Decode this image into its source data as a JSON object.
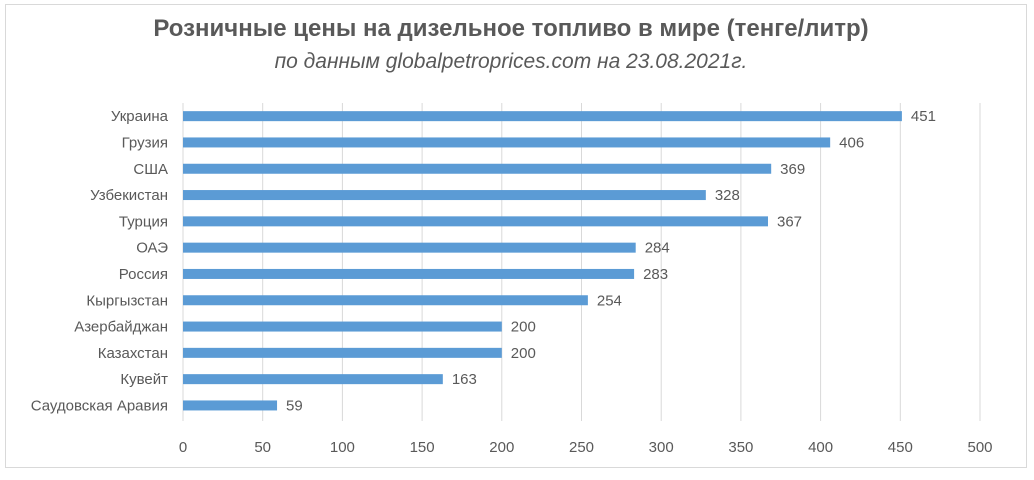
{
  "chart_data": {
    "type": "bar",
    "orientation": "horizontal",
    "title": "Розничные цены на дизельное топливо в мире (тенге/литр)",
    "subtitle": "по данным globalpetroprices.com на 23.08.2021г.",
    "categories": [
      "Украина",
      "Грузия",
      "США",
      "Узбекистан",
      "Турция",
      "ОАЭ",
      "Россия",
      "Кыргызстан",
      "Азербайджан",
      "Казахстан",
      "Кувейт",
      "Саудовская Аравия"
    ],
    "values": [
      451,
      406,
      369,
      328,
      367,
      284,
      283,
      254,
      200,
      200,
      163,
      59
    ],
    "xlim": [
      0,
      500
    ],
    "xticks": [
      0,
      50,
      100,
      150,
      200,
      250,
      300,
      350,
      400,
      450,
      500
    ],
    "grid": "vertical",
    "legend": "none",
    "colors": {
      "bar": "#5b9bd5",
      "grid": "#d9d9d9",
      "text": "#595959"
    }
  }
}
